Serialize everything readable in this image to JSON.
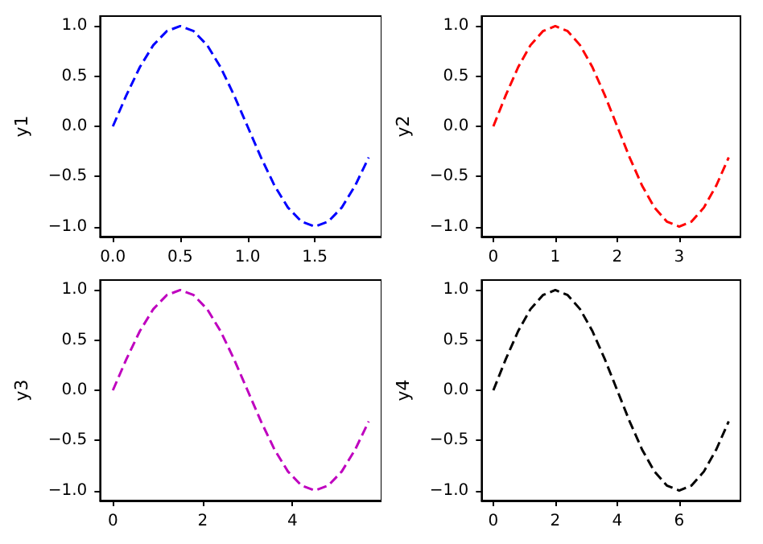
{
  "chart_data": [
    {
      "type": "line",
      "ylabel": "y1",
      "line_style": "dashed",
      "marker": "none",
      "x": [
        0,
        0.1,
        0.2,
        0.3,
        0.4,
        0.5,
        0.6,
        0.7,
        0.8,
        0.9,
        1.0,
        1.1,
        1.2,
        1.3,
        1.4,
        1.5,
        1.6,
        1.7,
        1.8,
        1.9
      ],
      "series": [
        {
          "color": "#0000ff",
          "values": [
            0,
            0.31,
            0.59,
            0.81,
            0.95,
            1,
            0.95,
            0.81,
            0.59,
            0.31,
            0,
            -0.31,
            -0.59,
            -0.81,
            -0.95,
            -1,
            -0.95,
            -0.81,
            -0.59,
            -0.31
          ]
        }
      ],
      "xlim": [
        -0.095,
        1.995
      ],
      "xticks": [
        {
          "value": 0,
          "label": "0.0"
        },
        {
          "value": 0.5,
          "label": "0.5"
        },
        {
          "value": 1,
          "label": "1.0"
        },
        {
          "value": 1.5,
          "label": "1.5"
        }
      ],
      "ylim": [
        -1.1,
        1.1
      ],
      "yticks": [
        {
          "value": -1,
          "label": "−1.0"
        },
        {
          "value": -0.5,
          "label": "−0.5"
        },
        {
          "value": 0,
          "label": "0.0"
        },
        {
          "value": 0.5,
          "label": "0.5"
        },
        {
          "value": 1,
          "label": "1.0"
        }
      ]
    },
    {
      "type": "line",
      "ylabel": "y2",
      "line_style": "dashed",
      "marker": "none",
      "x": [
        0,
        0.2,
        0.4,
        0.6,
        0.8,
        1.0,
        1.2,
        1.4,
        1.6,
        1.8,
        2.0,
        2.2,
        2.4,
        2.6,
        2.8,
        3.0,
        3.2,
        3.4,
        3.6,
        3.8
      ],
      "series": [
        {
          "color": "#ff0000",
          "values": [
            0,
            0.31,
            0.59,
            0.81,
            0.95,
            1,
            0.95,
            0.81,
            0.59,
            0.31,
            0,
            -0.31,
            -0.59,
            -0.81,
            -0.95,
            -1,
            -0.95,
            -0.81,
            -0.59,
            -0.31
          ]
        }
      ],
      "xlim": [
        -0.19,
        3.99
      ],
      "xticks": [
        0,
        1,
        2,
        3
      ],
      "ylim": [
        -1.1,
        1.1
      ],
      "yticks": [
        {
          "value": -1,
          "label": "−1.0"
        },
        {
          "value": -0.5,
          "label": "−0.5"
        },
        {
          "value": 0,
          "label": "0.0"
        },
        {
          "value": 0.5,
          "label": "0.5"
        },
        {
          "value": 1,
          "label": "1.0"
        }
      ]
    },
    {
      "type": "line",
      "ylabel": "y3",
      "line_style": "dashed",
      "marker": "none",
      "x": [
        0,
        0.3,
        0.6,
        0.9,
        1.2,
        1.5,
        1.8,
        2.1,
        2.4,
        2.7,
        3.0,
        3.3,
        3.6,
        3.9,
        4.2,
        4.5,
        4.8,
        5.1,
        5.4,
        5.7
      ],
      "series": [
        {
          "color": "#bf00bf",
          "values": [
            0,
            0.31,
            0.59,
            0.81,
            0.95,
            1,
            0.95,
            0.81,
            0.59,
            0.31,
            0,
            -0.31,
            -0.59,
            -0.81,
            -0.95,
            -1,
            -0.95,
            -0.81,
            -0.59,
            -0.31
          ]
        }
      ],
      "xlim": [
        -0.285,
        5.985
      ],
      "xticks": [
        0,
        2,
        4
      ],
      "ylim": [
        -1.1,
        1.1
      ],
      "yticks": [
        {
          "value": -1,
          "label": "−1.0"
        },
        {
          "value": -0.5,
          "label": "−0.5"
        },
        {
          "value": 0,
          "label": "0.0"
        },
        {
          "value": 0.5,
          "label": "0.5"
        },
        {
          "value": 1,
          "label": "1.0"
        }
      ]
    },
    {
      "type": "line",
      "ylabel": "y4",
      "line_style": "dashed",
      "marker": "none",
      "x": [
        0,
        0.4,
        0.8,
        1.2,
        1.6,
        2.0,
        2.4,
        2.8,
        3.2,
        3.6,
        4.0,
        4.4,
        4.8,
        5.2,
        5.6,
        6.0,
        6.4,
        6.8,
        7.2,
        7.6
      ],
      "series": [
        {
          "color": "#000000",
          "values": [
            0,
            0.31,
            0.59,
            0.81,
            0.95,
            1,
            0.95,
            0.81,
            0.59,
            0.31,
            0,
            -0.31,
            -0.59,
            -0.81,
            -0.95,
            -1,
            -0.95,
            -0.81,
            -0.59,
            -0.31
          ]
        }
      ],
      "xlim": [
        -0.38,
        7.98
      ],
      "xticks": [
        0,
        2,
        4,
        6
      ],
      "ylim": [
        -1.1,
        1.1
      ],
      "yticks": [
        {
          "value": -1,
          "label": "−1.0"
        },
        {
          "value": -0.5,
          "label": "−0.5"
        },
        {
          "value": 0,
          "label": "0.0"
        },
        {
          "value": 0.5,
          "label": "0.5"
        },
        {
          "value": 1,
          "label": "1.0"
        }
      ]
    }
  ]
}
